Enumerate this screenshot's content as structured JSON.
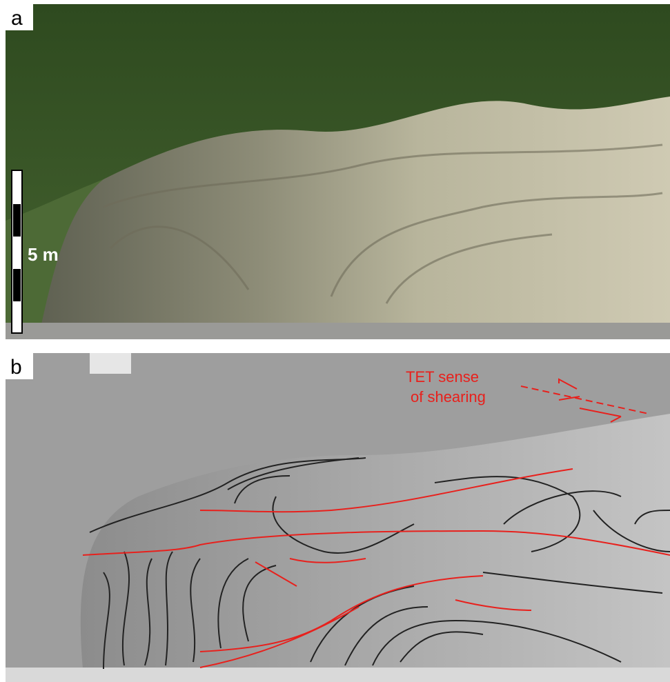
{
  "panels": [
    {
      "label": "a",
      "scale_bar": "5 m"
    },
    {
      "label": "b",
      "annotation": [
        "TET sense",
        "of shearing"
      ]
    }
  ]
}
